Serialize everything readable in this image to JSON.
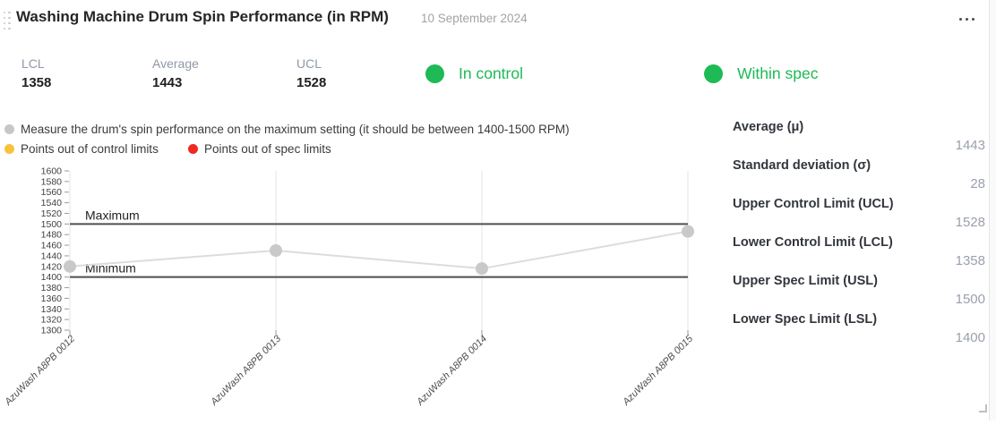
{
  "header": {
    "title": "Washing Machine Drum Spin Performance (in RPM)",
    "date": "10 September 2024"
  },
  "stats": [
    {
      "label": "LCL",
      "value": "1358"
    },
    {
      "label": "Average",
      "value": "1443"
    },
    {
      "label": "UCL",
      "value": "1528"
    }
  ],
  "status": [
    {
      "label": "In control"
    },
    {
      "label": "Within spec"
    }
  ],
  "legend": [
    {
      "color": "#c7c7c7",
      "label": "Measure the drum's spin performance on the maximum setting (it should be between 1400-1500 RPM)"
    },
    {
      "color": "#f6c33b",
      "label": "Points out of control limits"
    },
    {
      "color": "#ee2a24",
      "label": "Points out of spec limits"
    }
  ],
  "chart_data": {
    "type": "line",
    "categories": [
      "AzuWash A8PB 0012",
      "AzuWash A8PB 0013",
      "AzuWash A8PB 0014",
      "AzuWash A8PB 0015"
    ],
    "values": [
      1420,
      1450,
      1416,
      1486
    ],
    "ylim": [
      1300,
      1600
    ],
    "ytick_step": 20,
    "reference_lines": [
      {
        "label": "Maximum",
        "value": 1500
      },
      {
        "label": "Minimum",
        "value": 1400
      }
    ],
    "grid": "vertical-category-lines",
    "legend_position": "above"
  },
  "details_panel": {
    "rows": [
      {
        "label": "Average (μ)",
        "value": "1443"
      },
      {
        "label": "Standard deviation (σ)",
        "value": "28"
      },
      {
        "label": "Upper Control Limit (UCL)",
        "value": "1528"
      },
      {
        "label": "Lower Control Limit (LCL)",
        "value": "1358"
      },
      {
        "label": "Upper Spec Limit (USL)",
        "value": "1500"
      },
      {
        "label": "Lower Spec Limit (LSL)",
        "value": "1400"
      }
    ]
  },
  "colors": {
    "status_green": "#1dba55",
    "legend_gray": "#c7c7c7",
    "legend_yellow": "#f6c33b",
    "legend_red": "#ee2a24",
    "series_line": "#dcdcdc",
    "series_point": "#c9c9c9",
    "limit_line": "#4f4f4f",
    "gridline": "#e3e3e3"
  }
}
